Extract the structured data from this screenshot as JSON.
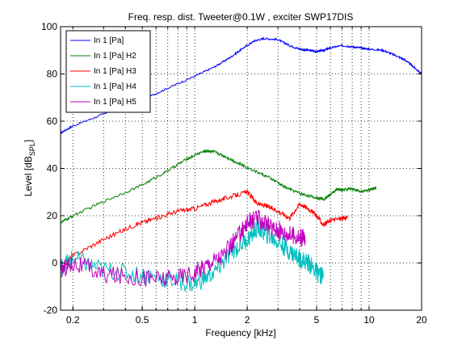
{
  "chart_data": {
    "type": "line",
    "title": "Freq. resp. dist.     Tweeter@0.1W , exciter SWP17DIS",
    "xlabel": "Frequency [kHz]",
    "ylabel_main": "Level [dB",
    "ylabel_sub": "SPL",
    "ylabel_end": "]",
    "x_scale": "log",
    "xlim": [
      0.17,
      20
    ],
    "ylim": [
      -20,
      100
    ],
    "x_ticks": [
      0.2,
      0.5,
      1,
      2,
      5,
      10,
      20
    ],
    "x_tick_labels": [
      "0.2",
      "0.5",
      "1",
      "2",
      "5",
      "10",
      "20"
    ],
    "y_ticks": [
      -20,
      0,
      20,
      40,
      60,
      80,
      100
    ],
    "y_tick_labels": [
      "-20",
      "0",
      "20",
      "40",
      "60",
      "80",
      "100"
    ],
    "grid": true,
    "legend_position": "top-left",
    "series": [
      {
        "name": "In 1 [Pa]",
        "color": "#0000ff",
        "noise": 0.4,
        "x": [
          0.17,
          0.2,
          0.3,
          0.5,
          0.7,
          1.0,
          1.3,
          1.6,
          1.9,
          2.2,
          2.5,
          3.0,
          3.5,
          4.0,
          4.5,
          5.0,
          5.5,
          6.0,
          7.0,
          8.0,
          9.0,
          10.0,
          12.0,
          14.0,
          16.0,
          18.0,
          20.0
        ],
        "y": [
          55,
          58,
          63,
          69,
          74,
          79,
          83,
          87,
          91,
          94,
          95,
          94.5,
          92,
          90.5,
          90,
          89.5,
          90,
          91,
          92,
          91.5,
          91,
          90.5,
          90,
          88,
          86,
          83,
          80
        ]
      },
      {
        "name": "In 1 [Pa] H2",
        "color": "#008000",
        "noise": 0.6,
        "x": [
          0.17,
          0.2,
          0.3,
          0.5,
          0.7,
          0.9,
          1.1,
          1.2,
          1.3,
          1.5,
          1.8,
          2.2,
          2.7,
          3.3,
          4.0,
          4.7,
          5.5,
          6.0,
          6.5,
          7.0,
          8.0,
          9.0,
          10.0,
          11.0
        ],
        "y": [
          17,
          20,
          26,
          33,
          39,
          44,
          47,
          47.5,
          47,
          45,
          42,
          39,
          36,
          32,
          29.5,
          28,
          27,
          29,
          31,
          31,
          31.5,
          30,
          31,
          32
        ]
      },
      {
        "name": "In 1 [Pa] H3",
        "color": "#ff0000",
        "noise": 1.0,
        "x": [
          0.17,
          0.2,
          0.3,
          0.45,
          0.6,
          0.8,
          1.0,
          1.3,
          1.6,
          2.0,
          2.3,
          2.6,
          3.0,
          3.5,
          4.0,
          4.5,
          5.0,
          5.5,
          6.0,
          7.0,
          7.5
        ],
        "y": [
          -3,
          3,
          10,
          16,
          19,
          22,
          23,
          26,
          28,
          30,
          25,
          24,
          22,
          19,
          25,
          23,
          20,
          16,
          18,
          19,
          19
        ]
      },
      {
        "name": "In 1 [Pa] H4",
        "color": "#00bfbf",
        "noise": 4.0,
        "x": [
          0.17,
          0.2,
          0.3,
          0.5,
          0.7,
          1.0,
          1.3,
          1.6,
          2.0,
          2.3,
          2.6,
          3.0,
          3.5,
          4.0,
          4.5,
          5.0,
          5.5
        ],
        "y": [
          -2,
          2,
          -3,
          -5,
          -7,
          -9,
          -4,
          4,
          10,
          15,
          12,
          9,
          5,
          2,
          0,
          -4,
          -6
        ]
      },
      {
        "name": "In 1 [Pa] H5",
        "color": "#bf00bf",
        "noise": 4.0,
        "x": [
          0.17,
          0.2,
          0.3,
          0.5,
          0.7,
          1.0,
          1.2,
          1.5,
          1.8,
          2.0,
          2.3,
          2.6,
          3.0,
          3.5,
          4.0,
          4.3
        ],
        "y": [
          -3,
          0,
          -5,
          -6,
          -7,
          -4,
          0,
          4,
          12,
          17,
          19,
          16,
          14,
          12,
          11,
          10
        ]
      }
    ]
  }
}
